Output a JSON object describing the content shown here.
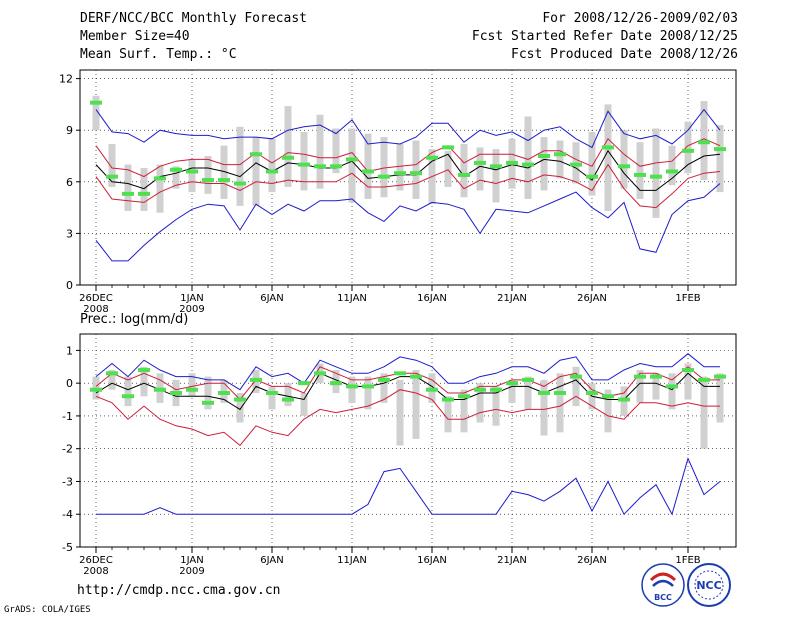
{
  "header": {
    "title": "DERF/NCC/BCC Monthly Forecast",
    "member_size": "Member Size=40",
    "variable": "Mean Surf. Temp.: °C",
    "period": "For 2008/12/26-2009/02/03",
    "start_date": "Fcst Started Refer Date 2008/12/25",
    "produced_date": "Fcst Produced Date 2008/12/26"
  },
  "footer": {
    "url": "http://cmdp.ncc.cma.gov.cn",
    "credit": "GrADS: COLA/IGES",
    "logo_left_text": "BCC",
    "logo_right_text": "NCC"
  },
  "colors": {
    "envelope": "#1c1ccc",
    "spread": "#cc1f3a",
    "mean": "#000000",
    "box": "#d0d0d0",
    "marker": "#4ee04e"
  },
  "chart_data": [
    {
      "type": "line",
      "title": "Mean Surf. Temp.: °C",
      "x_tick_labels": [
        "26DEC\n2008",
        "1JAN\n2009",
        "6JAN",
        "11JAN",
        "16JAN",
        "21JAN",
        "26JAN",
        "1FEB"
      ],
      "x_tick_days": [
        0,
        6,
        11,
        16,
        21,
        26,
        31,
        37
      ],
      "xlim": [
        -1,
        40
      ],
      "ylim": [
        0,
        12.5
      ],
      "yticks": [
        0,
        3,
        6,
        9,
        12
      ],
      "series": [
        {
          "name": "max",
          "role": "envelope",
          "values": [
            10.2,
            8.9,
            8.8,
            8.3,
            9.0,
            8.8,
            8.7,
            8.7,
            8.5,
            8.6,
            8.6,
            8.5,
            9.0,
            9.2,
            9.3,
            8.8,
            9.6,
            8.2,
            8.3,
            8.2,
            8.6,
            9.4,
            9.4,
            8.3,
            9.0,
            8.7,
            8.9,
            8.4,
            9.0,
            9.2,
            8.5,
            8.0,
            10.1,
            8.8,
            8.5,
            8.7,
            8.2,
            9.0,
            10.2,
            9.0
          ]
        },
        {
          "name": "upper",
          "role": "spread",
          "values": [
            8.1,
            6.8,
            6.7,
            6.3,
            6.9,
            7.2,
            7.3,
            7.3,
            7.0,
            7.0,
            7.7,
            7.1,
            7.7,
            7.6,
            7.4,
            7.4,
            7.7,
            6.6,
            6.8,
            6.9,
            7.0,
            7.7,
            8.1,
            7.1,
            7.6,
            7.6,
            7.6,
            7.3,
            7.8,
            7.8,
            7.3,
            6.9,
            8.5,
            7.6,
            6.9,
            7.1,
            7.2,
            8.1,
            8.5,
            8.1
          ]
        },
        {
          "name": "mean",
          "role": "mean",
          "values": [
            7.0,
            6.0,
            5.9,
            5.6,
            6.3,
            6.5,
            6.8,
            6.8,
            6.6,
            6.3,
            7.1,
            6.6,
            7.1,
            7.0,
            6.8,
            6.8,
            7.2,
            6.2,
            6.3,
            6.4,
            6.4,
            7.2,
            7.6,
            6.3,
            6.9,
            6.7,
            7.0,
            6.8,
            7.3,
            7.2,
            6.8,
            6.1,
            7.8,
            6.5,
            5.5,
            5.5,
            6.2,
            7.0,
            7.5,
            7.6
          ]
        },
        {
          "name": "lower",
          "role": "spread",
          "values": [
            6.3,
            5.0,
            4.9,
            4.8,
            5.4,
            5.8,
            6.0,
            5.9,
            5.9,
            5.5,
            6.0,
            5.9,
            6.1,
            6.0,
            6.0,
            6.0,
            6.5,
            5.7,
            5.7,
            5.8,
            5.9,
            6.3,
            6.7,
            5.6,
            6.1,
            5.9,
            6.2,
            6.0,
            6.4,
            6.3,
            6.0,
            5.5,
            7.0,
            5.6,
            4.6,
            4.5,
            5.3,
            6.2,
            6.5,
            6.6
          ]
        },
        {
          "name": "min",
          "role": "envelope",
          "values": [
            2.6,
            1.4,
            1.4,
            2.3,
            3.1,
            3.8,
            4.4,
            4.7,
            4.6,
            3.2,
            4.7,
            4.1,
            4.7,
            4.3,
            4.9,
            4.9,
            5.0,
            4.2,
            3.7,
            4.6,
            4.3,
            4.8,
            4.7,
            4.4,
            3.0,
            4.4,
            4.3,
            4.2,
            4.6,
            5.0,
            5.4,
            4.5,
            3.9,
            4.8,
            2.1,
            1.9,
            4.1,
            4.9,
            5.1,
            5.9
          ]
        }
      ],
      "boxes": [
        [
          9.0,
          11.0
        ],
        [
          5.7,
          8.2
        ],
        [
          4.3,
          7.0
        ],
        [
          4.3,
          6.8
        ],
        [
          4.2,
          7.0
        ],
        [
          5.6,
          6.9
        ],
        [
          5.4,
          7.3
        ],
        [
          5.3,
          7.5
        ],
        [
          5.0,
          8.1
        ],
        [
          4.6,
          9.2
        ],
        [
          4.6,
          8.6
        ],
        [
          5.4,
          8.5
        ],
        [
          5.7,
          10.4
        ],
        [
          5.5,
          8.9
        ],
        [
          5.6,
          9.9
        ],
        [
          6.5,
          9.1
        ],
        [
          4.8,
          9.1
        ],
        [
          5.0,
          8.8
        ],
        [
          5.1,
          8.6
        ],
        [
          5.5,
          8.2
        ],
        [
          5.0,
          8.4
        ],
        [
          4.7,
          7.9
        ],
        [
          5.7,
          7.8
        ],
        [
          5.1,
          8.2
        ],
        [
          5.5,
          8.0
        ],
        [
          4.8,
          7.9
        ],
        [
          5.6,
          8.5
        ],
        [
          5.0,
          9.8
        ],
        [
          5.5,
          8.6
        ],
        [
          6.2,
          8.4
        ],
        [
          5.9,
          8.3
        ],
        [
          5.2,
          8.9
        ],
        [
          4.3,
          10.5
        ],
        [
          5.6,
          9.0
        ],
        [
          5.0,
          8.3
        ],
        [
          3.9,
          9.1
        ],
        [
          5.8,
          8.1
        ],
        [
          6.5,
          9.5
        ],
        [
          6.1,
          10.7
        ],
        [
          5.4,
          9.3
        ]
      ],
      "markers": [
        10.6,
        6.3,
        5.3,
        5.3,
        6.2,
        6.7,
        6.6,
        6.1,
        6.1,
        5.9,
        7.6,
        6.6,
        7.4,
        7.0,
        6.9,
        6.9,
        7.3,
        6.6,
        6.3,
        6.5,
        6.5,
        7.4,
        8.0,
        6.4,
        7.1,
        6.9,
        7.1,
        7.0,
        7.5,
        7.6,
        7.0,
        6.3,
        8.0,
        6.9,
        6.4,
        6.3,
        6.6,
        7.8,
        8.3,
        7.9
      ]
    },
    {
      "type": "line",
      "title": "Prec.: log(mm/d)",
      "x_tick_labels": [
        "26DEC\n2008",
        "1JAN\n2009",
        "6JAN",
        "11JAN",
        "16JAN",
        "21JAN",
        "26JAN",
        "1FEB"
      ],
      "x_tick_days": [
        0,
        6,
        11,
        16,
        21,
        26,
        31,
        37
      ],
      "xlim": [
        -1,
        40
      ],
      "ylim": [
        -5,
        1.5
      ],
      "yticks": [
        -5,
        -4,
        -3,
        -2,
        -1,
        0,
        1
      ],
      "series": [
        {
          "name": "max",
          "role": "envelope",
          "values": [
            0.2,
            0.6,
            0.2,
            0.7,
            0.4,
            0.2,
            0.2,
            0.1,
            0.1,
            -0.2,
            0.5,
            0.2,
            0.3,
            0.0,
            0.7,
            0.5,
            0.3,
            0.3,
            0.5,
            0.8,
            0.7,
            0.5,
            0.0,
            0.0,
            0.2,
            0.3,
            0.5,
            0.5,
            0.3,
            0.7,
            0.8,
            0.1,
            0.1,
            0.4,
            0.6,
            0.5,
            0.5,
            0.9,
            0.5,
            0.5
          ]
        },
        {
          "name": "upper",
          "role": "spread",
          "values": [
            -0.1,
            0.3,
            0.1,
            0.3,
            0.1,
            -0.2,
            -0.1,
            0.0,
            0.0,
            -0.5,
            0.1,
            -0.1,
            -0.1,
            -0.3,
            0.5,
            0.3,
            0.1,
            0.1,
            0.2,
            0.3,
            0.3,
            0.1,
            -0.3,
            -0.3,
            -0.1,
            -0.1,
            0.1,
            0.1,
            -0.1,
            0.2,
            0.3,
            -0.2,
            -0.4,
            -0.3,
            0.3,
            0.3,
            0.1,
            0.5,
            0.1,
            0.1
          ]
        },
        {
          "name": "mean",
          "role": "mean",
          "values": [
            -0.3,
            0.0,
            -0.2,
            0.0,
            -0.2,
            -0.4,
            -0.4,
            -0.4,
            -0.5,
            -0.8,
            -0.1,
            -0.3,
            -0.4,
            -0.5,
            0.3,
            0.1,
            -0.1,
            -0.1,
            0.0,
            0.2,
            0.2,
            -0.1,
            -0.5,
            -0.5,
            -0.3,
            -0.3,
            -0.1,
            -0.1,
            -0.3,
            -0.1,
            0.1,
            -0.4,
            -0.5,
            -0.5,
            0.0,
            0.0,
            -0.2,
            0.3,
            -0.1,
            -0.1
          ]
        },
        {
          "name": "lower",
          "role": "spread",
          "values": [
            -0.4,
            -0.6,
            -1.1,
            -0.7,
            -1.1,
            -1.3,
            -1.4,
            -1.6,
            -1.5,
            -1.9,
            -1.3,
            -1.5,
            -1.6,
            -1.1,
            -0.8,
            -0.9,
            -0.8,
            -0.7,
            -0.5,
            -0.2,
            -0.3,
            -0.5,
            -1.1,
            -1.1,
            -0.9,
            -0.8,
            -0.9,
            -0.8,
            -0.8,
            -0.7,
            -0.4,
            -0.7,
            -1.0,
            -1.1,
            -0.6,
            -0.6,
            -0.7,
            -0.6,
            -0.7,
            -0.7
          ]
        },
        {
          "name": "min",
          "role": "envelope",
          "values": [
            -4.0,
            -4.0,
            -4.0,
            -4.0,
            -3.8,
            -4.0,
            -4.0,
            -4.0,
            -4.0,
            -4.0,
            -4.0,
            -4.0,
            -4.0,
            -4.0,
            -4.0,
            -4.0,
            -4.0,
            -3.7,
            -2.7,
            -2.6,
            -3.3,
            -4.0,
            -4.0,
            -4.0,
            -4.0,
            -4.0,
            -3.3,
            -3.4,
            -3.6,
            -3.3,
            -2.9,
            -3.9,
            -3.0,
            -4.0,
            -3.5,
            -3.1,
            -4.0,
            -2.3,
            -3.4,
            -3.0
          ]
        }
      ],
      "boxes": [
        [
          -0.5,
          0.2
        ],
        [
          -0.2,
          0.4
        ],
        [
          -0.7,
          0.2
        ],
        [
          -0.4,
          0.5
        ],
        [
          -0.6,
          0.3
        ],
        [
          -0.7,
          0.1
        ],
        [
          -0.4,
          0.3
        ],
        [
          -0.8,
          0.2
        ],
        [
          -0.6,
          0.1
        ],
        [
          -1.2,
          -0.3
        ],
        [
          -0.3,
          0.4
        ],
        [
          -0.8,
          -0.1
        ],
        [
          -0.7,
          0.0
        ],
        [
          -1.0,
          -0.3
        ],
        [
          0.0,
          0.6
        ],
        [
          -0.3,
          0.4
        ],
        [
          -0.6,
          0.2
        ],
        [
          -0.8,
          0.2
        ],
        [
          -0.6,
          0.3
        ],
        [
          -1.9,
          0.1
        ],
        [
          -1.7,
          0.4
        ],
        [
          -0.6,
          0.3
        ],
        [
          -1.5,
          -0.4
        ],
        [
          -1.5,
          -0.2
        ],
        [
          -1.2,
          0.0
        ],
        [
          -1.3,
          -0.1
        ],
        [
          -0.6,
          0.1
        ],
        [
          -0.8,
          0.2
        ],
        [
          -1.6,
          0.1
        ],
        [
          -1.5,
          0.3
        ],
        [
          -0.7,
          0.5
        ],
        [
          -0.8,
          0.0
        ],
        [
          -1.5,
          -0.2
        ],
        [
          -1.0,
          -0.1
        ],
        [
          -0.6,
          0.4
        ],
        [
          -0.5,
          0.3
        ],
        [
          -0.8,
          0.3
        ],
        [
          -0.5,
          0.6
        ],
        [
          -2.0,
          0.2
        ],
        [
          -1.2,
          0.3
        ]
      ],
      "markers": [
        -0.2,
        0.3,
        -0.4,
        0.4,
        -0.2,
        -0.3,
        -0.2,
        -0.6,
        -0.3,
        -0.5,
        0.1,
        -0.3,
        -0.5,
        0.0,
        0.3,
        0.0,
        -0.1,
        -0.1,
        0.1,
        0.3,
        0.2,
        -0.2,
        -0.5,
        -0.4,
        -0.2,
        -0.2,
        0.0,
        0.1,
        -0.3,
        -0.3,
        0.2,
        -0.3,
        -0.4,
        -0.5,
        0.2,
        0.2,
        -0.1,
        0.4,
        0.1,
        0.2
      ]
    }
  ]
}
